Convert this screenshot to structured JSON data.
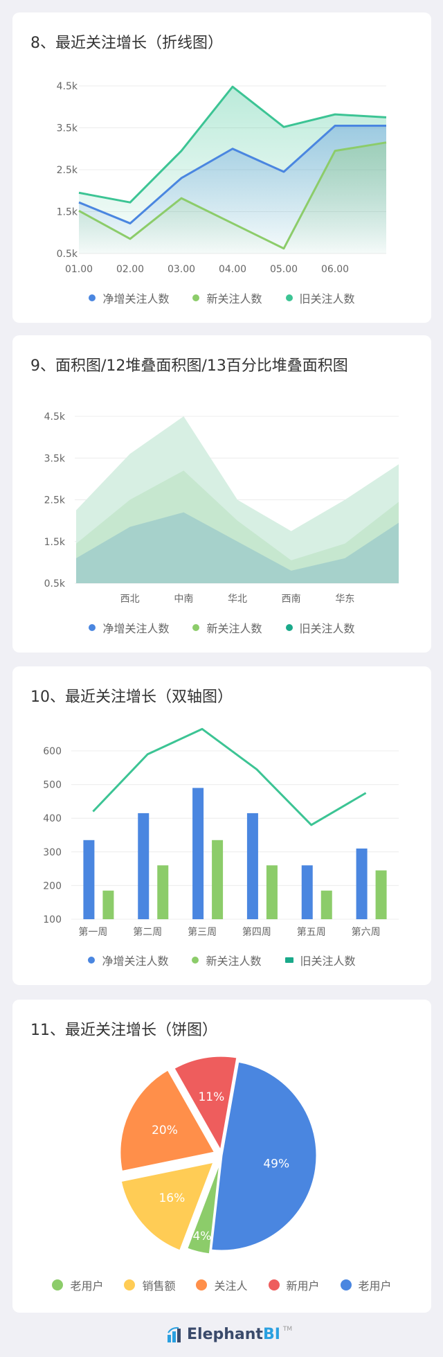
{
  "colors": {
    "net": "#4a86e0",
    "new": "#8ccc6a",
    "old": "#3cc494"
  },
  "cards": [
    {
      "title": "8、最近关注增长（折线图）",
      "legend": [
        {
          "label": "净增关注人数",
          "color": "#4a86e0"
        },
        {
          "label": "新关注人数",
          "color": "#8ccc6a"
        },
        {
          "label": "旧关注人数",
          "color": "#3cc494"
        }
      ]
    },
    {
      "title": "9、面积图/12堆叠面积图/13百分比堆叠面积图",
      "legend": [
        {
          "label": "净增关注人数",
          "color": "#4a86e0"
        },
        {
          "label": "新关注人数",
          "color": "#8ccc6a"
        },
        {
          "label": "旧关注人数",
          "color": "#1aa98a"
        }
      ]
    },
    {
      "title": "10、最近关注增长（双轴图）",
      "legend": [
        {
          "label": "净增关注人数",
          "color": "#4a86e0",
          "shape": "dot"
        },
        {
          "label": "新关注人数",
          "color": "#8ccc6a",
          "shape": "dot"
        },
        {
          "label": "旧关注人数",
          "color": "#1aa98a",
          "shape": "rect"
        }
      ]
    },
    {
      "title": "11、最近关注增长（饼图）",
      "legend": [
        {
          "label": "老用户",
          "color": "#8ccc6a"
        },
        {
          "label": "销售额",
          "color": "#ffcc55"
        },
        {
          "label": "关注人",
          "color": "#ff8f4a"
        },
        {
          "label": "新用户",
          "color": "#ee5d5d"
        },
        {
          "label": "老用户",
          "color": "#4a86e0"
        }
      ]
    }
  ],
  "chart_data": [
    {
      "type": "line",
      "categories": [
        "01.00",
        "02.00",
        "03.00",
        "04.00",
        "05.00",
        "06.00"
      ],
      "x": [
        0,
        1,
        2,
        3,
        4,
        5,
        6
      ],
      "yticks": [
        "0.5k",
        "1.5k",
        "2.5k",
        "3.5k",
        "4.5k"
      ],
      "ylim": [
        0.5,
        4.5
      ],
      "series": [
        {
          "name": "旧关注人数",
          "values": [
            1.95,
            1.72,
            2.95,
            4.48,
            3.52,
            3.82,
            3.75
          ]
        },
        {
          "name": "净增关注人数",
          "values": [
            1.72,
            1.22,
            2.3,
            3.0,
            2.45,
            3.55,
            3.55
          ]
        },
        {
          "name": "新关注人数",
          "values": [
            1.52,
            0.85,
            1.82,
            1.22,
            0.62,
            2.95,
            3.15
          ]
        }
      ]
    },
    {
      "type": "area",
      "categories": [
        "西北",
        "中南",
        "华北",
        "西南",
        "华东"
      ],
      "x": [
        0,
        1,
        2,
        3,
        4,
        5,
        6
      ],
      "yticks": [
        "0.5k",
        "1.5k",
        "2.5k",
        "3.5k",
        "4.5k"
      ],
      "ylim": [
        0.5,
        4.5
      ],
      "series": [
        {
          "name": "旧关注人数",
          "values": [
            2.25,
            3.6,
            4.5,
            2.5,
            1.75,
            2.5,
            3.35
          ]
        },
        {
          "name": "新关注人数",
          "values": [
            1.45,
            2.5,
            3.2,
            2.0,
            1.05,
            1.45,
            2.45
          ]
        },
        {
          "name": "净增关注人数",
          "values": [
            1.1,
            1.85,
            2.2,
            1.5,
            0.8,
            1.1,
            1.95
          ]
        }
      ]
    },
    {
      "type": "bar",
      "categories": [
        "第一周",
        "第二周",
        "第三周",
        "第四周",
        "第五周",
        "第六周"
      ],
      "yticks": [
        "100",
        "200",
        "300",
        "400",
        "500",
        "600"
      ],
      "ylim": [
        100,
        600
      ],
      "series": [
        {
          "name": "净增关注人数",
          "type": "bar",
          "values": [
            335,
            415,
            490,
            415,
            260,
            310
          ]
        },
        {
          "name": "新关注人数",
          "type": "bar",
          "values": [
            185,
            260,
            335,
            260,
            185,
            245
          ]
        },
        {
          "name": "旧关注人数",
          "type": "line",
          "values": [
            420,
            590,
            665,
            545,
            380,
            475
          ]
        }
      ]
    },
    {
      "type": "pie",
      "slices": [
        {
          "name": "老用户",
          "value": 49,
          "label": "49%",
          "color": "#4a86e0"
        },
        {
          "name": "老用户",
          "value": 4,
          "label": "4%",
          "color": "#8ccc6a"
        },
        {
          "name": "销售额",
          "value": 16,
          "label": "16%",
          "color": "#ffcc55"
        },
        {
          "name": "关注人",
          "value": 20,
          "label": "20%",
          "color": "#ff8f4a"
        },
        {
          "name": "新用户",
          "value": 11,
          "label": "11%",
          "color": "#ee5d5d"
        }
      ]
    }
  ]
}
